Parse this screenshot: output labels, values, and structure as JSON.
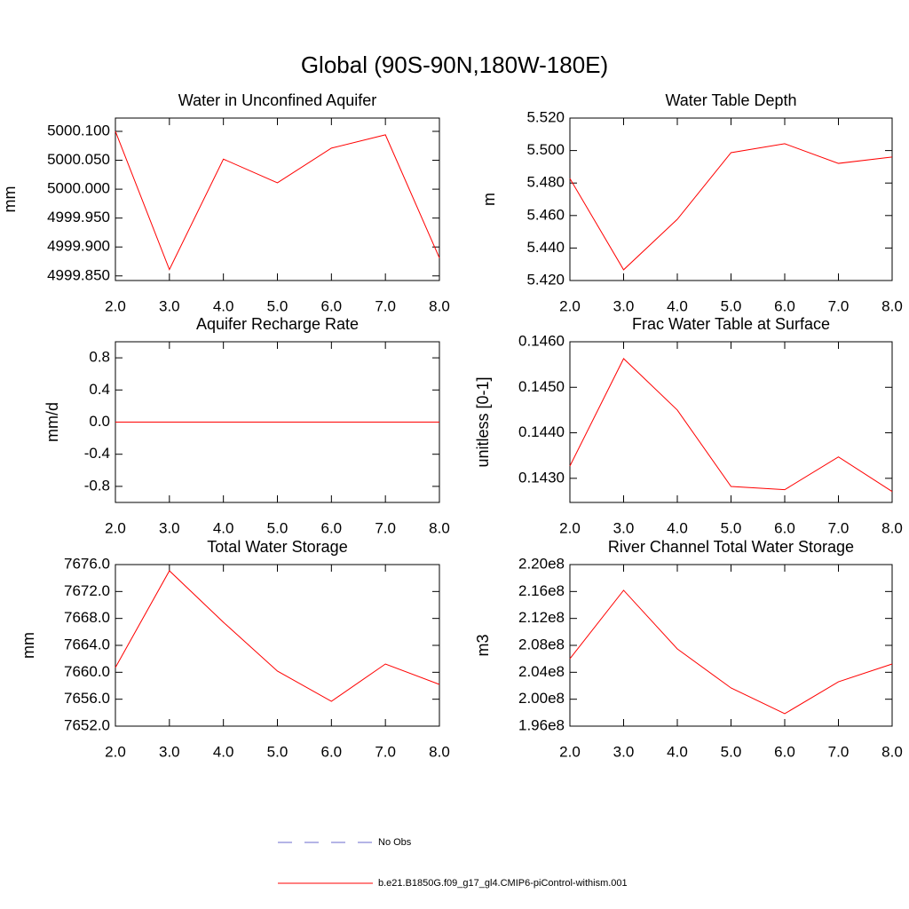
{
  "title": "Global (90S-90N,180W-180E)",
  "legend": [
    {
      "name": "No Obs",
      "color": "#6a6acd",
      "dashed": true
    },
    {
      "name": "b.e21.B1850G.f09_g17_gl4.CMIP6-piControl-withism.001",
      "color": "#ff0000",
      "dashed": false
    }
  ],
  "chart_data": [
    {
      "type": "line",
      "title": "Water in Unconfined Aquifer",
      "ylabel": "mm",
      "x": [
        2,
        3,
        4,
        5,
        6,
        7,
        8
      ],
      "xlim": [
        2,
        8
      ],
      "xticks": [
        {
          "value": 2,
          "label": "2.0"
        },
        {
          "value": 3,
          "label": "3.0"
        },
        {
          "value": 4,
          "label": "4.0"
        },
        {
          "value": 5,
          "label": "5.0"
        },
        {
          "value": 6,
          "label": "6.0"
        },
        {
          "value": 7,
          "label": "7.0"
        },
        {
          "value": 8,
          "label": "8.0"
        }
      ],
      "ylim": [
        4999.842,
        5000.123
      ],
      "yticks": [
        {
          "value": 4999.85,
          "label": "4999.850"
        },
        {
          "value": 4999.9,
          "label": "4999.900"
        },
        {
          "value": 4999.95,
          "label": "4999.950"
        },
        {
          "value": 5000,
          "label": "5000.000"
        },
        {
          "value": 5000.05,
          "label": "5000.050"
        },
        {
          "value": 5000.1,
          "label": "5000.100"
        }
      ],
      "series": [
        {
          "color": "#ff0000",
          "values": [
            5000.1,
            4999.861,
            5000.052,
            5000.011,
            5000.071,
            5000.094,
            4999.881
          ]
        }
      ]
    },
    {
      "type": "line",
      "title": "Water Table Depth",
      "ylabel": "m",
      "x": [
        2,
        3,
        4,
        5,
        6,
        7,
        8
      ],
      "xlim": [
        2,
        8
      ],
      "xticks": [
        {
          "value": 2,
          "label": "2.0"
        },
        {
          "value": 3,
          "label": "3.0"
        },
        {
          "value": 4,
          "label": "4.0"
        },
        {
          "value": 5,
          "label": "5.0"
        },
        {
          "value": 6,
          "label": "6.0"
        },
        {
          "value": 7,
          "label": "7.0"
        },
        {
          "value": 8,
          "label": "8.0"
        }
      ],
      "ylim": [
        5.42,
        5.52
      ],
      "yticks": [
        {
          "value": 5.42,
          "label": "5.420"
        },
        {
          "value": 5.44,
          "label": "5.440"
        },
        {
          "value": 5.46,
          "label": "5.460"
        },
        {
          "value": 5.48,
          "label": "5.480"
        },
        {
          "value": 5.5,
          "label": "5.500"
        },
        {
          "value": 5.52,
          "label": "5.520"
        }
      ],
      "series": [
        {
          "color": "#ff0000",
          "values": [
            5.4828,
            5.4266,
            5.4577,
            5.4987,
            5.5042,
            5.4921,
            5.496
          ]
        }
      ]
    },
    {
      "type": "line",
      "title": "Aquifer Recharge Rate",
      "ylabel": "mm/d",
      "x": [
        2,
        3,
        4,
        5,
        6,
        7,
        8
      ],
      "xlim": [
        2,
        8
      ],
      "xticks": [
        {
          "value": 2,
          "label": "2.0"
        },
        {
          "value": 3,
          "label": "3.0"
        },
        {
          "value": 4,
          "label": "4.0"
        },
        {
          "value": 5,
          "label": "5.0"
        },
        {
          "value": 6,
          "label": "6.0"
        },
        {
          "value": 7,
          "label": "7.0"
        },
        {
          "value": 8,
          "label": "8.0"
        }
      ],
      "ylim": [
        -1,
        1
      ],
      "yticks": [
        {
          "value": -0.8,
          "label": "-0.8"
        },
        {
          "value": -0.4,
          "label": "-0.4"
        },
        {
          "value": 0,
          "label": "0.0"
        },
        {
          "value": 0.4,
          "label": "0.4"
        },
        {
          "value": 0.8,
          "label": "0.8"
        }
      ],
      "series": [
        {
          "color": "#ff0000",
          "values": [
            0,
            0,
            0,
            0,
            0,
            0,
            0
          ]
        }
      ]
    },
    {
      "type": "line",
      "title": "Frac Water Table at Surface",
      "ylabel": "unitless [0-1]",
      "x": [
        2,
        3,
        4,
        5,
        6,
        7,
        8
      ],
      "xlim": [
        2,
        8
      ],
      "xticks": [
        {
          "value": 2,
          "label": "2.0"
        },
        {
          "value": 3,
          "label": "3.0"
        },
        {
          "value": 4,
          "label": "4.0"
        },
        {
          "value": 5,
          "label": "5.0"
        },
        {
          "value": 6,
          "label": "6.0"
        },
        {
          "value": 7,
          "label": "7.0"
        },
        {
          "value": 8,
          "label": "8.0"
        }
      ],
      "ylim": [
        0.14247,
        0.146
      ],
      "yticks": [
        {
          "value": 0.143,
          "label": "0.1430"
        },
        {
          "value": 0.144,
          "label": "0.1440"
        },
        {
          "value": 0.145,
          "label": "0.1450"
        },
        {
          "value": 0.146,
          "label": "0.1460"
        }
      ],
      "series": [
        {
          "color": "#ff0000",
          "values": [
            0.14327,
            0.14563,
            0.1445,
            0.14282,
            0.14275,
            0.14347,
            0.14271
          ]
        }
      ]
    },
    {
      "type": "line",
      "title": "Total Water Storage",
      "ylabel": "mm",
      "x": [
        2,
        3,
        4,
        5,
        6,
        7,
        8
      ],
      "xlim": [
        2,
        8
      ],
      "xticks": [
        {
          "value": 2,
          "label": "2.0"
        },
        {
          "value": 3,
          "label": "3.0"
        },
        {
          "value": 4,
          "label": "4.0"
        },
        {
          "value": 5,
          "label": "5.0"
        },
        {
          "value": 6,
          "label": "6.0"
        },
        {
          "value": 7,
          "label": "7.0"
        },
        {
          "value": 8,
          "label": "8.0"
        }
      ],
      "ylim": [
        7652,
        7676
      ],
      "yticks": [
        {
          "value": 7652,
          "label": "7652.0"
        },
        {
          "value": 7656,
          "label": "7656.0"
        },
        {
          "value": 7660,
          "label": "7660.0"
        },
        {
          "value": 7664,
          "label": "7664.0"
        },
        {
          "value": 7668,
          "label": "7668.0"
        },
        {
          "value": 7672,
          "label": "7672.0"
        },
        {
          "value": 7676,
          "label": "7676.0"
        }
      ],
      "series": [
        {
          "color": "#ff0000",
          "values": [
            7660.7,
            7675.08,
            7667.43,
            7660.18,
            7655.69,
            7661.23,
            7658.2
          ]
        }
      ]
    },
    {
      "type": "line",
      "title": "River Channel Total Water Storage",
      "ylabel": "m3",
      "x": [
        2,
        3,
        4,
        5,
        6,
        7,
        8
      ],
      "xlim": [
        2,
        8
      ],
      "xticks": [
        {
          "value": 2,
          "label": "2.0"
        },
        {
          "value": 3,
          "label": "3.0"
        },
        {
          "value": 4,
          "label": "4.0"
        },
        {
          "value": 5,
          "label": "5.0"
        },
        {
          "value": 6,
          "label": "6.0"
        },
        {
          "value": 7,
          "label": "7.0"
        },
        {
          "value": 8,
          "label": "8.0"
        }
      ],
      "ylim": [
        196000000,
        220000000
      ],
      "yticks": [
        {
          "value": 196000000,
          "label": "1.96e8"
        },
        {
          "value": 200000000,
          "label": "2.00e8"
        },
        {
          "value": 204000000,
          "label": "2.04e8"
        },
        {
          "value": 208000000,
          "label": "2.08e8"
        },
        {
          "value": 212000000,
          "label": "2.12e8"
        },
        {
          "value": 216000000,
          "label": "2.16e8"
        },
        {
          "value": 220000000,
          "label": "2.20e8"
        }
      ],
      "series": [
        {
          "color": "#ff0000",
          "values": [
            206020000,
            216180000,
            207470000,
            201670000,
            197850000,
            202590000,
            205230000
          ]
        }
      ]
    }
  ]
}
